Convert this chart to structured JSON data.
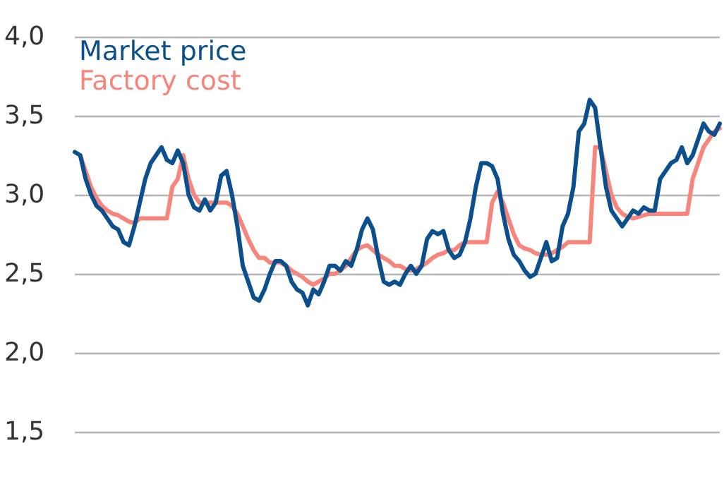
{
  "chart_data": {
    "type": "line",
    "categories": [
      null,
      null,
      null,
      null,
      null,
      null,
      null,
      null,
      null,
      null,
      null,
      null,
      null,
      null,
      null,
      null,
      null,
      null,
      null,
      null,
      null,
      null,
      null,
      null,
      null,
      null,
      null,
      null,
      null,
      null,
      null,
      null,
      null,
      null,
      null,
      null,
      null,
      null,
      null,
      null,
      null,
      null,
      null,
      null,
      null,
      null,
      null,
      null,
      null,
      null,
      null,
      null,
      null,
      null,
      null,
      null,
      null,
      null,
      null,
      null,
      null,
      null,
      null,
      null,
      null,
      null,
      null,
      null,
      null,
      null,
      null,
      null,
      null,
      null,
      null,
      null,
      null,
      null,
      null,
      null,
      null,
      null,
      null,
      null,
      null,
      null,
      null,
      null,
      null,
      null,
      null,
      null,
      null,
      null,
      null,
      null,
      null,
      null,
      null,
      null,
      null,
      null,
      null,
      null,
      null,
      null,
      null,
      null,
      null,
      null,
      null,
      null,
      null,
      null,
      null,
      null,
      null,
      null,
      null,
      null
    ],
    "series": [
      {
        "name": "Market price",
        "color": "#0b4f8c",
        "values": [
          3.27,
          3.25,
          3.1,
          3.0,
          2.93,
          2.9,
          2.85,
          2.8,
          2.78,
          2.7,
          2.68,
          2.8,
          2.95,
          3.1,
          3.2,
          3.25,
          3.3,
          3.22,
          3.2,
          3.28,
          3.2,
          3.0,
          2.92,
          2.9,
          2.97,
          2.9,
          2.95,
          3.12,
          3.15,
          3.0,
          2.8,
          2.55,
          2.45,
          2.35,
          2.33,
          2.4,
          2.5,
          2.58,
          2.58,
          2.55,
          2.45,
          2.4,
          2.38,
          2.3,
          2.4,
          2.37,
          2.45,
          2.55,
          2.55,
          2.52,
          2.58,
          2.55,
          2.65,
          2.78,
          2.85,
          2.78,
          2.6,
          2.45,
          2.43,
          2.45,
          2.43,
          2.5,
          2.55,
          2.5,
          2.55,
          2.72,
          2.77,
          2.75,
          2.77,
          2.65,
          2.6,
          2.62,
          2.7,
          2.85,
          3.05,
          3.2,
          3.2,
          3.18,
          3.1,
          2.88,
          2.72,
          2.62,
          2.58,
          2.52,
          2.48,
          2.5,
          2.6,
          2.7,
          2.58,
          2.6,
          2.8,
          2.88,
          3.05,
          3.4,
          3.45,
          3.6,
          3.55,
          3.3,
          3.05,
          2.9,
          2.85,
          2.8,
          2.85,
          2.9,
          2.88,
          2.92,
          2.9,
          2.9,
          3.1,
          3.15,
          3.2,
          3.22,
          3.3,
          3.2,
          3.25,
          3.35,
          3.45,
          3.4,
          3.38,
          3.45
        ]
      },
      {
        "name": "Factory cost",
        "color": "#f7857c",
        "values": [
          null,
          3.25,
          3.15,
          3.05,
          2.98,
          2.93,
          2.9,
          2.88,
          2.87,
          2.85,
          2.83,
          2.82,
          2.85,
          2.85,
          2.85,
          2.85,
          2.85,
          2.85,
          3.05,
          3.1,
          3.25,
          3.1,
          3.0,
          2.95,
          2.95,
          2.95,
          2.95,
          2.95,
          2.95,
          2.93,
          2.88,
          2.8,
          2.72,
          2.65,
          2.6,
          2.6,
          2.57,
          2.57,
          2.57,
          2.55,
          2.52,
          2.5,
          2.48,
          2.45,
          2.43,
          2.45,
          2.47,
          2.5,
          2.5,
          2.52,
          2.55,
          2.6,
          2.65,
          2.67,
          2.68,
          2.65,
          2.62,
          2.6,
          2.58,
          2.55,
          2.55,
          2.53,
          2.52,
          2.53,
          2.55,
          2.57,
          2.6,
          2.62,
          2.63,
          2.65,
          2.65,
          2.68,
          2.7,
          2.7,
          2.7,
          2.7,
          2.7,
          2.95,
          3.02,
          2.95,
          2.85,
          2.75,
          2.68,
          2.66,
          2.65,
          2.63,
          2.62,
          2.62,
          2.63,
          2.65,
          2.67,
          2.7,
          2.7,
          2.7,
          2.7,
          2.7,
          3.3,
          3.3,
          3.15,
          3.0,
          2.92,
          2.88,
          2.86,
          2.85,
          2.86,
          2.87,
          2.88,
          2.88,
          2.88,
          2.88,
          2.88,
          2.88,
          2.88,
          2.88,
          3.1,
          3.2,
          3.3,
          3.35,
          3.4,
          3.42
        ]
      }
    ],
    "ylim": [
      1.5,
      4.0
    ],
    "yticks": [
      {
        "value": 1.5,
        "label": "1,5"
      },
      {
        "value": 2.0,
        "label": "2,0"
      },
      {
        "value": 2.5,
        "label": "2,5"
      },
      {
        "value": 3.0,
        "label": "3,0"
      },
      {
        "value": 3.5,
        "label": "3,5"
      },
      {
        "value": 4.0,
        "label": "4,0"
      }
    ],
    "grid": "y",
    "legend": "top left",
    "line_style": "solid",
    "tick_labels": "y"
  }
}
